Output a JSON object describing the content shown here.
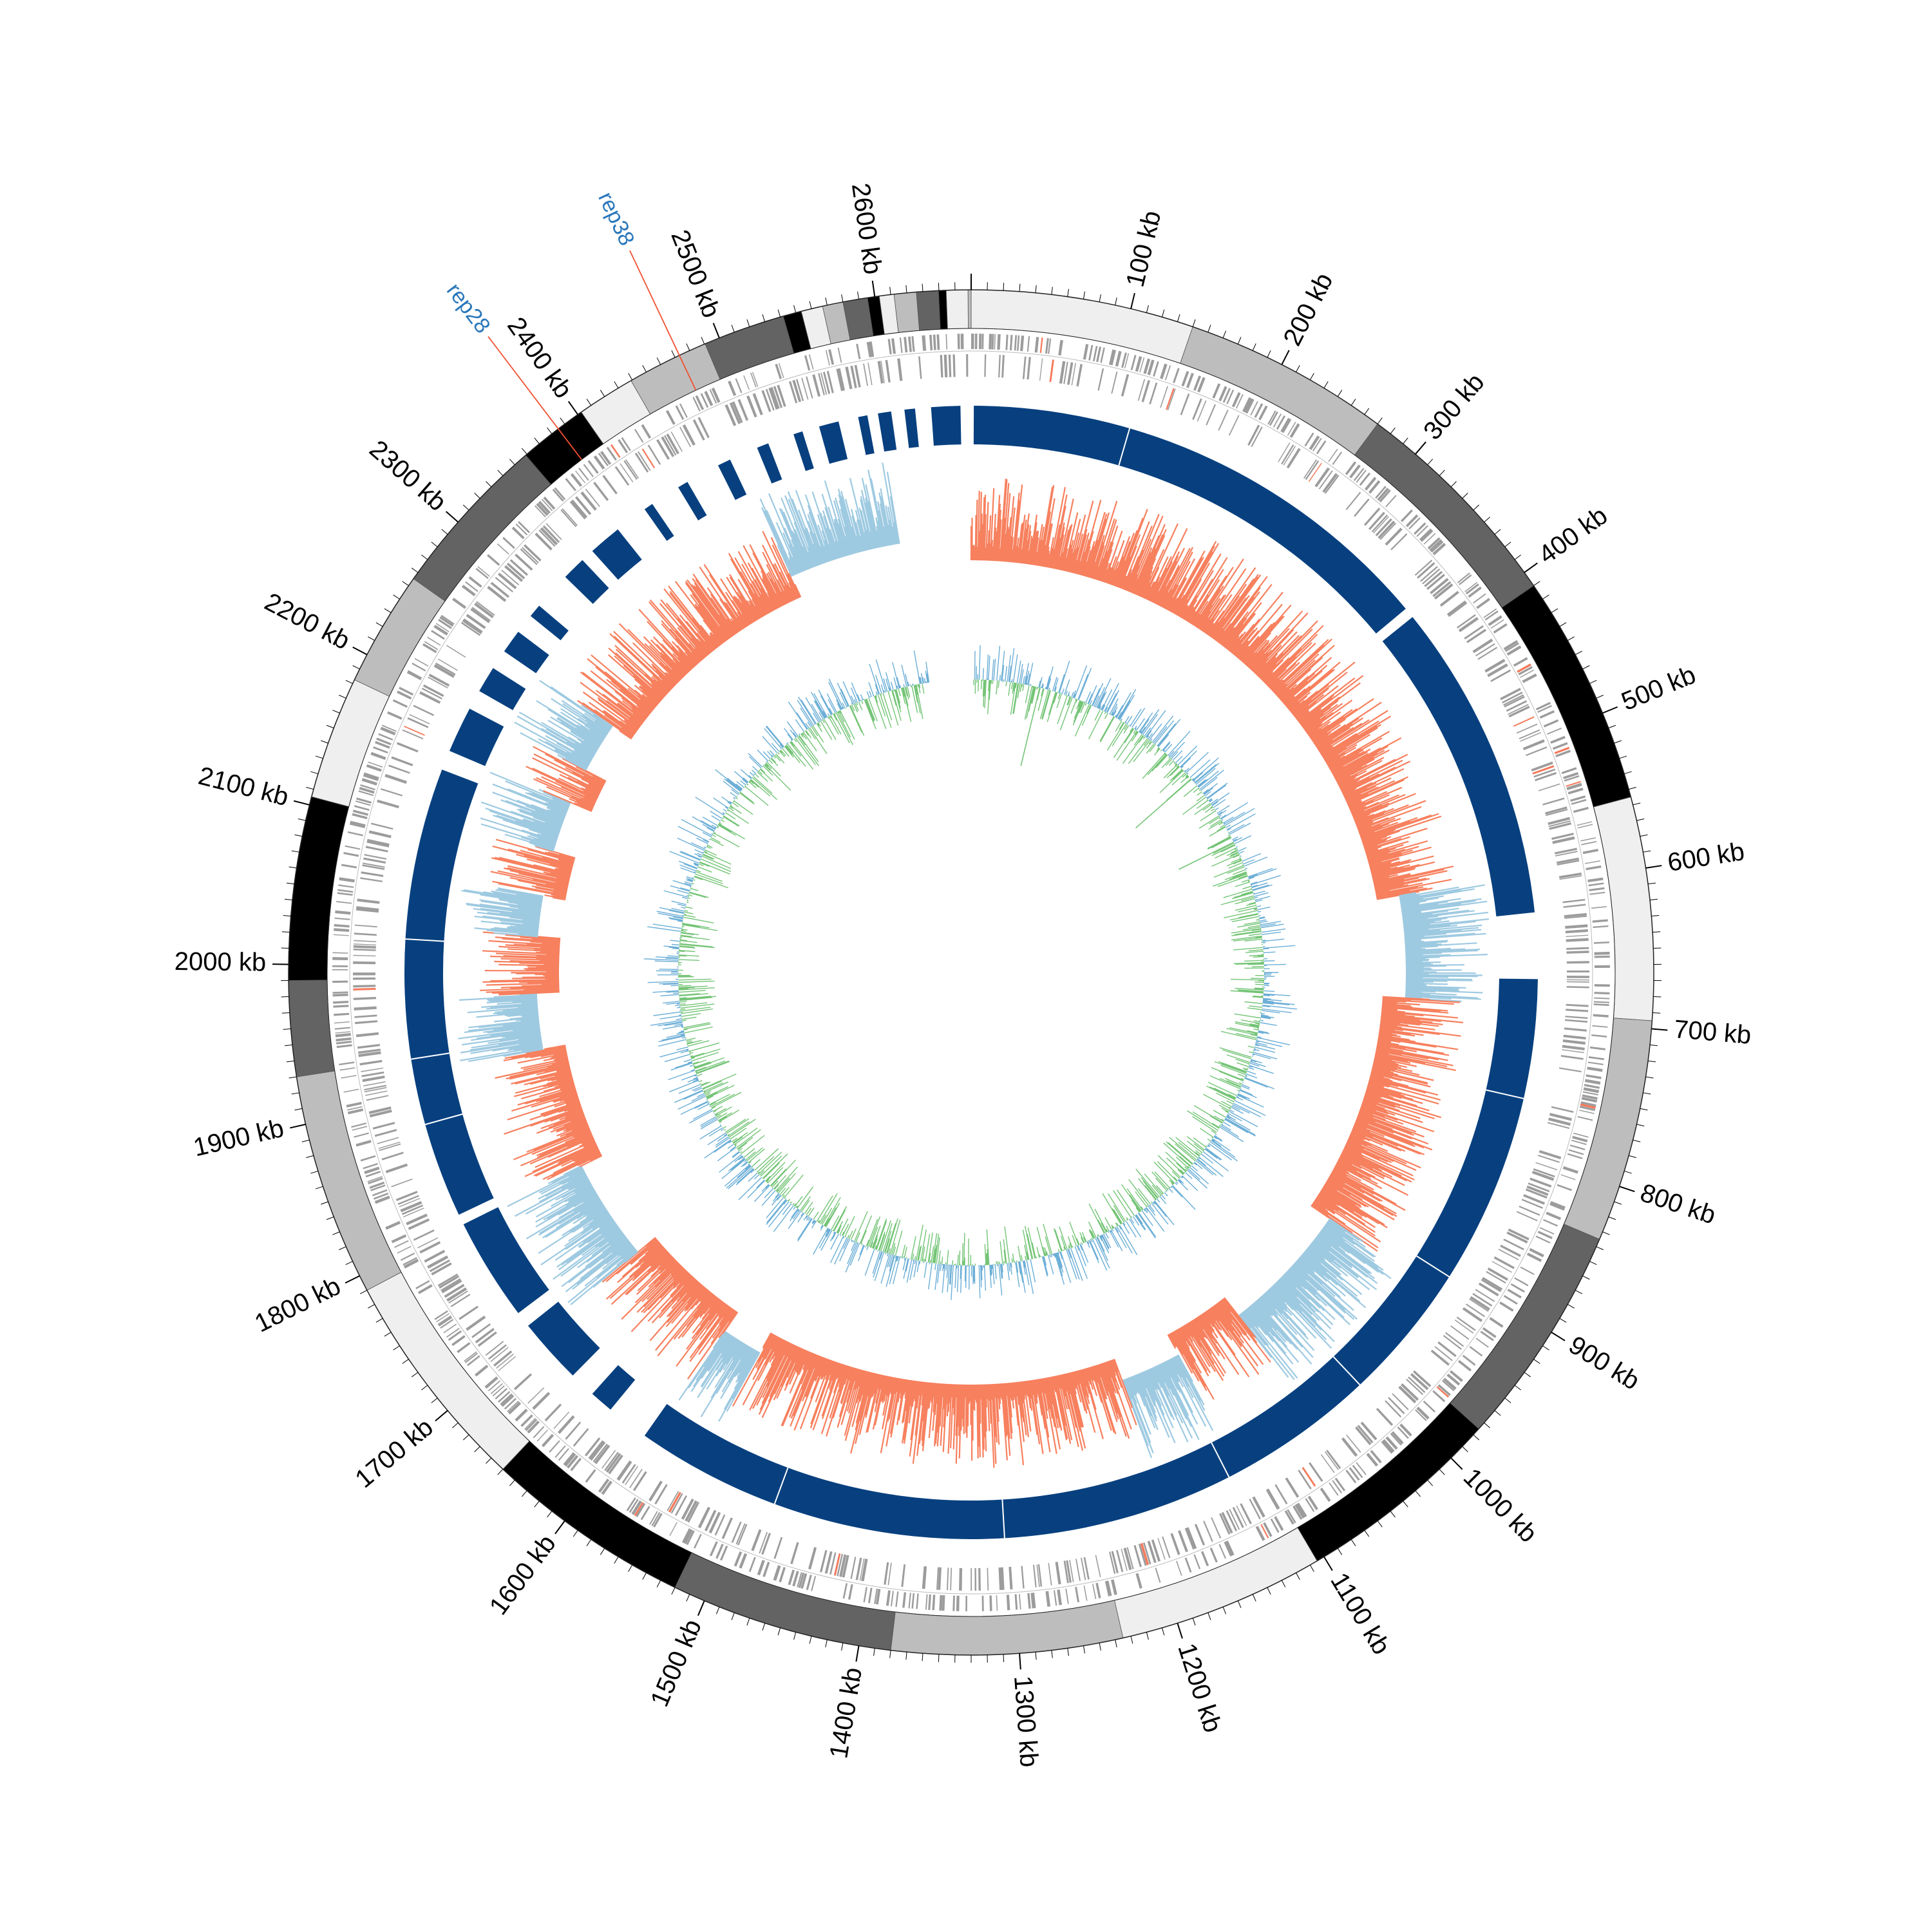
{
  "diagram": {
    "type": "circos-genome-map",
    "genome_length_kb": 2660,
    "tick_labels": [
      "100 kb",
      "200 kb",
      "300 kb",
      "400 kb",
      "500 kb",
      "600 kb",
      "700 kb",
      "800 kb",
      "900 kb",
      "1000 kb",
      "1100 kb",
      "1200 kb",
      "1300 kb",
      "1400 kb",
      "1500 kb",
      "1600 kb",
      "1700 kb",
      "1800 kb",
      "1900 kb",
      "2000 kb",
      "2100 kb",
      "2200 kb",
      "2300 kb",
      "2400 kb",
      "2500 kb",
      "2600 kb"
    ],
    "contig_shades": [
      "#efefef",
      "#bdbdbd",
      "#636363",
      "#000000"
    ],
    "tracks": {
      "contigs": "grayscale contig blocks",
      "features": "gray gene features with red markers",
      "alignment": "dark blue alignment blocks",
      "gc_content": "red-orange and light-blue histogram",
      "gc_skew": "blue and green line histogram"
    },
    "colors": {
      "feature": "#9c9c9c",
      "feature_marker": "#f4795a",
      "alignment": "#08407f",
      "gc_positive": "#f7805e",
      "gc_negative": "#9ecae1",
      "skew_positive": "#6baed6",
      "skew_negative": "#74c476",
      "rep_line": "#f05030",
      "rep_text": "#2a77bb"
    },
    "annotations": [
      {
        "label": "rep38",
        "position_kb": 2473
      },
      {
        "label": "rep28",
        "position_kb": 2385
      }
    ]
  }
}
